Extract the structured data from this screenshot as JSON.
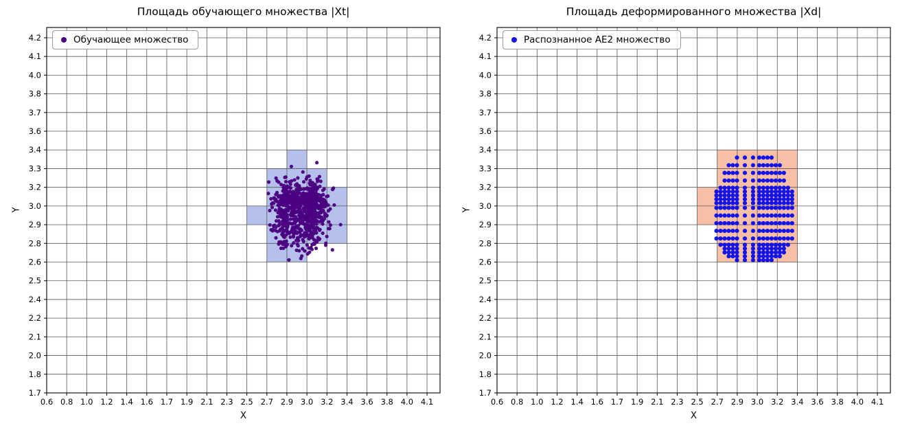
{
  "figure": {
    "background": "#ffffff"
  },
  "chart_data": [
    {
      "type": "scatter",
      "title": "Площадь обучающего множества |Xt|",
      "xlabel": "X",
      "ylabel": "Y",
      "legend_label": "Обучающее множество",
      "legend_position": "upper-left",
      "grid": true,
      "marker_color": "#4B0082",
      "region_color": "#b5c1ec",
      "grid_color": "#555555",
      "spine_color": "#000000",
      "xticks": [
        "0.6",
        "0.8",
        "1.0",
        "1.2",
        "1.4",
        "1.6",
        "1.7",
        "1.9",
        "2.1",
        "2.3",
        "2.5",
        "2.7",
        "2.9",
        "3.0",
        "3.2",
        "3.4",
        "3.6",
        "3.8",
        "4.0",
        "4.1"
      ],
      "yticks": [
        "1.7",
        "1.8",
        "2.0",
        "2.1",
        "2.2",
        "2.4",
        "2.5",
        "2.6",
        "2.8",
        "2.9",
        "3.0",
        "3.2",
        "3.3",
        "3.4",
        "3.6",
        "3.7",
        "3.8",
        "4.0",
        "4.1",
        "4.2"
      ],
      "regions": [
        {
          "x0": 2.9,
          "x1": 3.0,
          "y0": 3.3,
          "y1": 3.4
        },
        {
          "x0": 2.7,
          "x1": 3.2,
          "y0": 3.2,
          "y1": 3.3
        },
        {
          "x0": 2.7,
          "x1": 3.4,
          "y0": 2.8,
          "y1": 3.2
        },
        {
          "x0": 2.5,
          "x1": 2.7,
          "y0": 2.9,
          "y1": 3.0
        },
        {
          "x0": 2.7,
          "x1": 3.0,
          "y0": 2.6,
          "y1": 2.8
        }
      ],
      "points": {
        "kind": "gaussian-cluster",
        "center": [
          2.98,
          3.0
        ],
        "std": [
          0.105,
          0.115
        ],
        "count": 900,
        "seed": 42,
        "radius": 2.6,
        "opacity": 0.95
      }
    },
    {
      "type": "scatter",
      "title": "Площадь деформированного множества |Xd|",
      "xlabel": "X",
      "ylabel": "Y",
      "legend_label": "Распознанное AE2 множество",
      "legend_position": "upper-left",
      "grid": true,
      "marker_color": "#1414e6",
      "region_color": "#f7bfa6",
      "grid_color": "#555555",
      "spine_color": "#000000",
      "xticks": [
        "0.6",
        "0.8",
        "1.0",
        "1.2",
        "1.4",
        "1.6",
        "1.7",
        "1.9",
        "2.1",
        "2.3",
        "2.5",
        "2.7",
        "2.9",
        "3.0",
        "3.2",
        "3.4",
        "3.6",
        "3.8",
        "4.0",
        "4.1"
      ],
      "yticks": [
        "1.7",
        "1.8",
        "2.0",
        "2.1",
        "2.2",
        "2.4",
        "2.5",
        "2.6",
        "2.8",
        "2.9",
        "3.0",
        "3.2",
        "3.3",
        "3.4",
        "3.6",
        "3.7",
        "3.8",
        "4.0",
        "4.1",
        "4.2"
      ],
      "regions": [
        {
          "x0": 2.7,
          "x1": 3.4,
          "y0": 2.6,
          "y1": 3.4
        },
        {
          "x0": 2.5,
          "x1": 2.7,
          "y0": 2.9,
          "y1": 3.2
        }
      ],
      "points": {
        "kind": "ellipse-lattice",
        "center": [
          3.02,
          2.99
        ],
        "rx": 0.36,
        "ry": 0.4,
        "spacing": 0.041,
        "radius": 3.1,
        "opacity": 1
      }
    }
  ]
}
